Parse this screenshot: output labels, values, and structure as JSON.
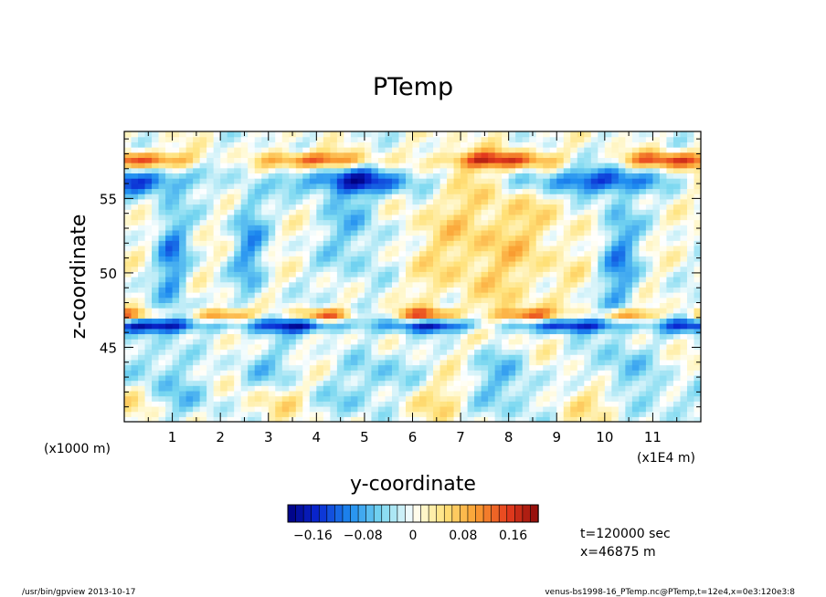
{
  "chart_data": {
    "type": "heatmap",
    "title": "PTemp",
    "xlabel": "y-coordinate",
    "ylabel": "z-coordinate",
    "x_scale_label": "(x1E4 m)",
    "y_scale_label": "(x1000 m)",
    "xlim": [
      0,
      12
    ],
    "ylim": [
      40,
      59.5
    ],
    "x_ticks": [
      "1",
      "2",
      "3",
      "4",
      "5",
      "6",
      "7",
      "8",
      "9",
      "10",
      "11"
    ],
    "y_ticks": [
      "45",
      "50",
      "55"
    ],
    "colorbar": {
      "ticks": [
        "-0.16",
        "-0.08",
        "0",
        "0.08",
        "0.16"
      ],
      "range": [
        -0.2,
        0.2
      ],
      "levels": 32
    },
    "annotations": [
      "t=120000 sec",
      "x=46875 m"
    ],
    "grid": false,
    "field_features": [
      {
        "kind": "cold_band",
        "z": 46.5
      },
      {
        "kind": "warm_band",
        "z": 47.2
      },
      {
        "kind": "warm_band",
        "z": 57.6
      },
      {
        "kind": "cold_band",
        "z": 56.2
      },
      {
        "kind": "warm_region",
        "y_range": [
          6.2,
          9.0
        ],
        "z_range": [
          48,
          56
        ]
      }
    ]
  },
  "footer": {
    "left": "/usr/bin/gpview  2013-10-17",
    "right": "venus-bs1998-16_PTemp.nc@PTemp,t=12e4,x=0e3:120e3:8"
  }
}
